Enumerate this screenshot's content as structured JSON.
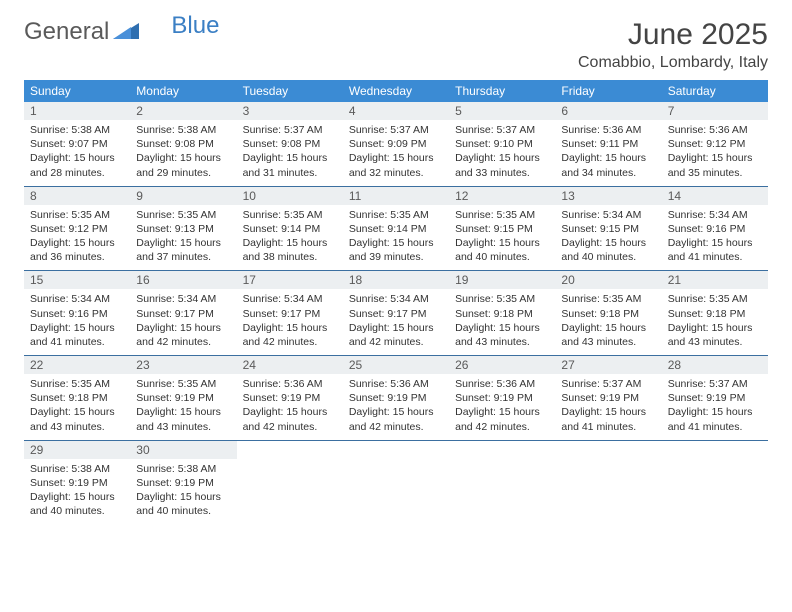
{
  "logo": {
    "text1": "General",
    "text2": "Blue"
  },
  "title": "June 2025",
  "location": "Comabbio, Lombardy, Italy",
  "colors": {
    "header_bg": "#3b8bd4",
    "header_fg": "#ffffff",
    "daynum_bg": "#eceff1",
    "row_border": "#3b6fa0",
    "logo_accent": "#2f6fb0"
  },
  "weekdays": [
    "Sunday",
    "Monday",
    "Tuesday",
    "Wednesday",
    "Thursday",
    "Friday",
    "Saturday"
  ],
  "days": [
    {
      "n": "1",
      "sr": "5:38 AM",
      "ss": "9:07 PM",
      "dl": "15 hours and 28 minutes."
    },
    {
      "n": "2",
      "sr": "5:38 AM",
      "ss": "9:08 PM",
      "dl": "15 hours and 29 minutes."
    },
    {
      "n": "3",
      "sr": "5:37 AM",
      "ss": "9:08 PM",
      "dl": "15 hours and 31 minutes."
    },
    {
      "n": "4",
      "sr": "5:37 AM",
      "ss": "9:09 PM",
      "dl": "15 hours and 32 minutes."
    },
    {
      "n": "5",
      "sr": "5:37 AM",
      "ss": "9:10 PM",
      "dl": "15 hours and 33 minutes."
    },
    {
      "n": "6",
      "sr": "5:36 AM",
      "ss": "9:11 PM",
      "dl": "15 hours and 34 minutes."
    },
    {
      "n": "7",
      "sr": "5:36 AM",
      "ss": "9:12 PM",
      "dl": "15 hours and 35 minutes."
    },
    {
      "n": "8",
      "sr": "5:35 AM",
      "ss": "9:12 PM",
      "dl": "15 hours and 36 minutes."
    },
    {
      "n": "9",
      "sr": "5:35 AM",
      "ss": "9:13 PM",
      "dl": "15 hours and 37 minutes."
    },
    {
      "n": "10",
      "sr": "5:35 AM",
      "ss": "9:14 PM",
      "dl": "15 hours and 38 minutes."
    },
    {
      "n": "11",
      "sr": "5:35 AM",
      "ss": "9:14 PM",
      "dl": "15 hours and 39 minutes."
    },
    {
      "n": "12",
      "sr": "5:35 AM",
      "ss": "9:15 PM",
      "dl": "15 hours and 40 minutes."
    },
    {
      "n": "13",
      "sr": "5:34 AM",
      "ss": "9:15 PM",
      "dl": "15 hours and 40 minutes."
    },
    {
      "n": "14",
      "sr": "5:34 AM",
      "ss": "9:16 PM",
      "dl": "15 hours and 41 minutes."
    },
    {
      "n": "15",
      "sr": "5:34 AM",
      "ss": "9:16 PM",
      "dl": "15 hours and 41 minutes."
    },
    {
      "n": "16",
      "sr": "5:34 AM",
      "ss": "9:17 PM",
      "dl": "15 hours and 42 minutes."
    },
    {
      "n": "17",
      "sr": "5:34 AM",
      "ss": "9:17 PM",
      "dl": "15 hours and 42 minutes."
    },
    {
      "n": "18",
      "sr": "5:34 AM",
      "ss": "9:17 PM",
      "dl": "15 hours and 42 minutes."
    },
    {
      "n": "19",
      "sr": "5:35 AM",
      "ss": "9:18 PM",
      "dl": "15 hours and 43 minutes."
    },
    {
      "n": "20",
      "sr": "5:35 AM",
      "ss": "9:18 PM",
      "dl": "15 hours and 43 minutes."
    },
    {
      "n": "21",
      "sr": "5:35 AM",
      "ss": "9:18 PM",
      "dl": "15 hours and 43 minutes."
    },
    {
      "n": "22",
      "sr": "5:35 AM",
      "ss": "9:18 PM",
      "dl": "15 hours and 43 minutes."
    },
    {
      "n": "23",
      "sr": "5:35 AM",
      "ss": "9:19 PM",
      "dl": "15 hours and 43 minutes."
    },
    {
      "n": "24",
      "sr": "5:36 AM",
      "ss": "9:19 PM",
      "dl": "15 hours and 42 minutes."
    },
    {
      "n": "25",
      "sr": "5:36 AM",
      "ss": "9:19 PM",
      "dl": "15 hours and 42 minutes."
    },
    {
      "n": "26",
      "sr": "5:36 AM",
      "ss": "9:19 PM",
      "dl": "15 hours and 42 minutes."
    },
    {
      "n": "27",
      "sr": "5:37 AM",
      "ss": "9:19 PM",
      "dl": "15 hours and 41 minutes."
    },
    {
      "n": "28",
      "sr": "5:37 AM",
      "ss": "9:19 PM",
      "dl": "15 hours and 41 minutes."
    },
    {
      "n": "29",
      "sr": "5:38 AM",
      "ss": "9:19 PM",
      "dl": "15 hours and 40 minutes."
    },
    {
      "n": "30",
      "sr": "5:38 AM",
      "ss": "9:19 PM",
      "dl": "15 hours and 40 minutes."
    }
  ],
  "labels": {
    "sunrise": "Sunrise: ",
    "sunset": "Sunset: ",
    "daylight": "Daylight: "
  }
}
